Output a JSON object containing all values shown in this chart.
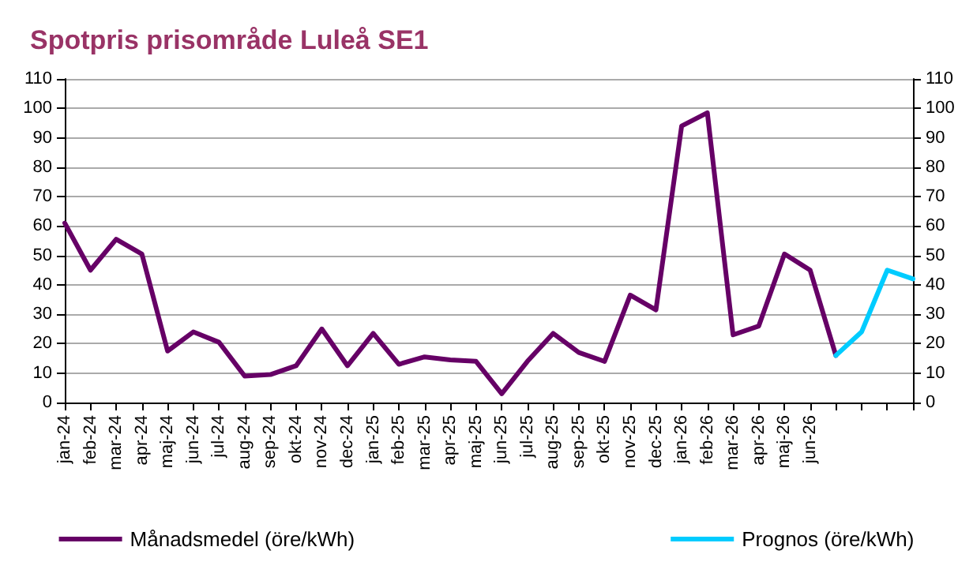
{
  "chart_data": {
    "type": "line",
    "title": "Spotpris prisområde Luleå SE1",
    "categories": [
      "jan-24",
      "feb-24",
      "mar-24",
      "apr-24",
      "maj-24",
      "jun-24",
      "jul-24",
      "aug-24",
      "sep-24",
      "okt-24",
      "nov-24",
      "dec-24",
      "jan-25",
      "feb-25",
      "mar-25",
      "apr-25",
      "maj-25",
      "jun-25",
      "jul-25",
      "aug-25",
      "sep-25",
      "okt-25",
      "nov-25",
      "dec-25",
      "jan-26",
      "feb-26",
      "mar-26",
      "apr-26",
      "maj-26",
      "jun-26",
      null,
      null,
      null,
      null
    ],
    "series": [
      {
        "name": "Månadsmedel (öre/kWh)",
        "color": "#660066",
        "values": [
          61,
          45,
          55.5,
          50.5,
          17.5,
          24,
          20.5,
          9,
          9.5,
          12.5,
          25,
          12.5,
          23.5,
          13,
          15.5,
          14.5,
          14,
          3,
          14,
          23.5,
          17,
          14,
          36.5,
          31.5,
          94,
          98.5,
          23,
          26,
          50.5,
          45,
          16,
          null,
          null,
          null
        ]
      },
      {
        "name": "Prognos (öre/kWh)",
        "color": "#00ccff",
        "values": [
          null,
          null,
          null,
          null,
          null,
          null,
          null,
          null,
          null,
          null,
          null,
          null,
          null,
          null,
          null,
          null,
          null,
          null,
          null,
          null,
          null,
          null,
          null,
          null,
          null,
          null,
          null,
          null,
          null,
          null,
          16,
          24,
          45,
          42
        ]
      }
    ],
    "ylim": [
      0,
      110
    ],
    "yticks": [
      0,
      10,
      20,
      30,
      40,
      50,
      60,
      70,
      80,
      90,
      100,
      110
    ],
    "y2lim": [
      0,
      110
    ],
    "y2ticks": [
      0,
      10,
      20,
      30,
      40,
      50,
      60,
      70,
      80,
      90,
      100,
      110
    ],
    "grid": "y",
    "legend": "bottom",
    "marker": "none",
    "line_style": "solid"
  }
}
